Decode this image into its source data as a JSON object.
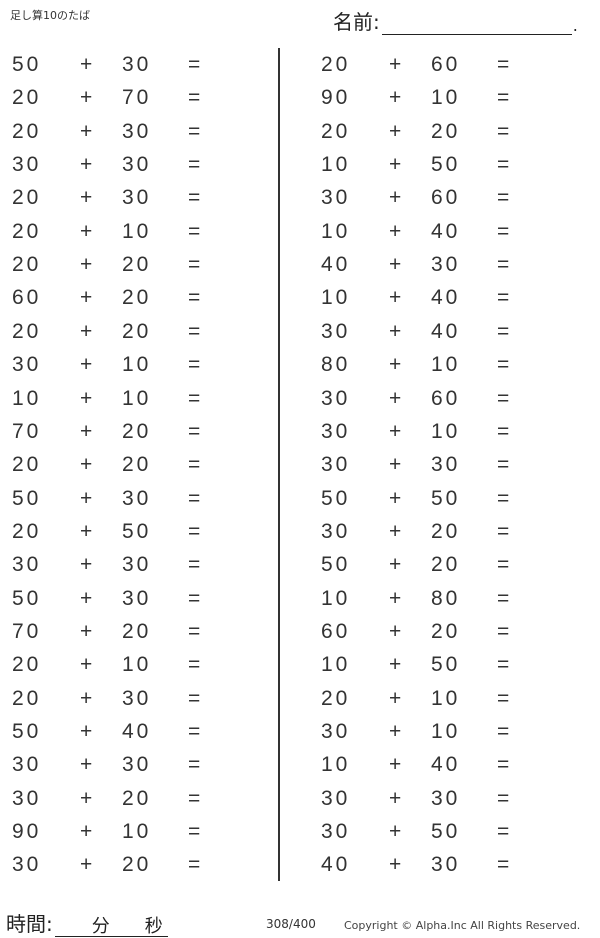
{
  "header": {
    "title": "足し算10のたば",
    "name_label": "名前:",
    "name_end": "."
  },
  "operator": "+",
  "equals": "=",
  "left": [
    [
      "50",
      "30"
    ],
    [
      "20",
      "70"
    ],
    [
      "20",
      "30"
    ],
    [
      "30",
      "30"
    ],
    [
      "20",
      "30"
    ],
    [
      "20",
      "10"
    ],
    [
      "20",
      "20"
    ],
    [
      "60",
      "20"
    ],
    [
      "20",
      "20"
    ],
    [
      "30",
      "10"
    ],
    [
      "10",
      "10"
    ],
    [
      "70",
      "20"
    ],
    [
      "20",
      "20"
    ],
    [
      "50",
      "30"
    ],
    [
      "20",
      "50"
    ],
    [
      "30",
      "30"
    ],
    [
      "50",
      "30"
    ],
    [
      "70",
      "20"
    ],
    [
      "20",
      "10"
    ],
    [
      "20",
      "30"
    ],
    [
      "50",
      "40"
    ],
    [
      "30",
      "30"
    ],
    [
      "30",
      "20"
    ],
    [
      "90",
      "10"
    ],
    [
      "30",
      "20"
    ]
  ],
  "right": [
    [
      "20",
      "60"
    ],
    [
      "90",
      "10"
    ],
    [
      "20",
      "20"
    ],
    [
      "10",
      "50"
    ],
    [
      "30",
      "60"
    ],
    [
      "10",
      "40"
    ],
    [
      "40",
      "30"
    ],
    [
      "10",
      "40"
    ],
    [
      "30",
      "40"
    ],
    [
      "80",
      "10"
    ],
    [
      "30",
      "60"
    ],
    [
      "30",
      "10"
    ],
    [
      "30",
      "30"
    ],
    [
      "50",
      "50"
    ],
    [
      "30",
      "20"
    ],
    [
      "50",
      "20"
    ],
    [
      "10",
      "80"
    ],
    [
      "60",
      "20"
    ],
    [
      "10",
      "50"
    ],
    [
      "20",
      "10"
    ],
    [
      "30",
      "10"
    ],
    [
      "10",
      "40"
    ],
    [
      "30",
      "30"
    ],
    [
      "30",
      "50"
    ],
    [
      "40",
      "30"
    ]
  ],
  "footer": {
    "time_label": "時間:",
    "minutes": "分",
    "seconds": "秒",
    "page": "308/400",
    "copyright": "Copyright ©  Alpha.Inc All Rights Reserved."
  }
}
